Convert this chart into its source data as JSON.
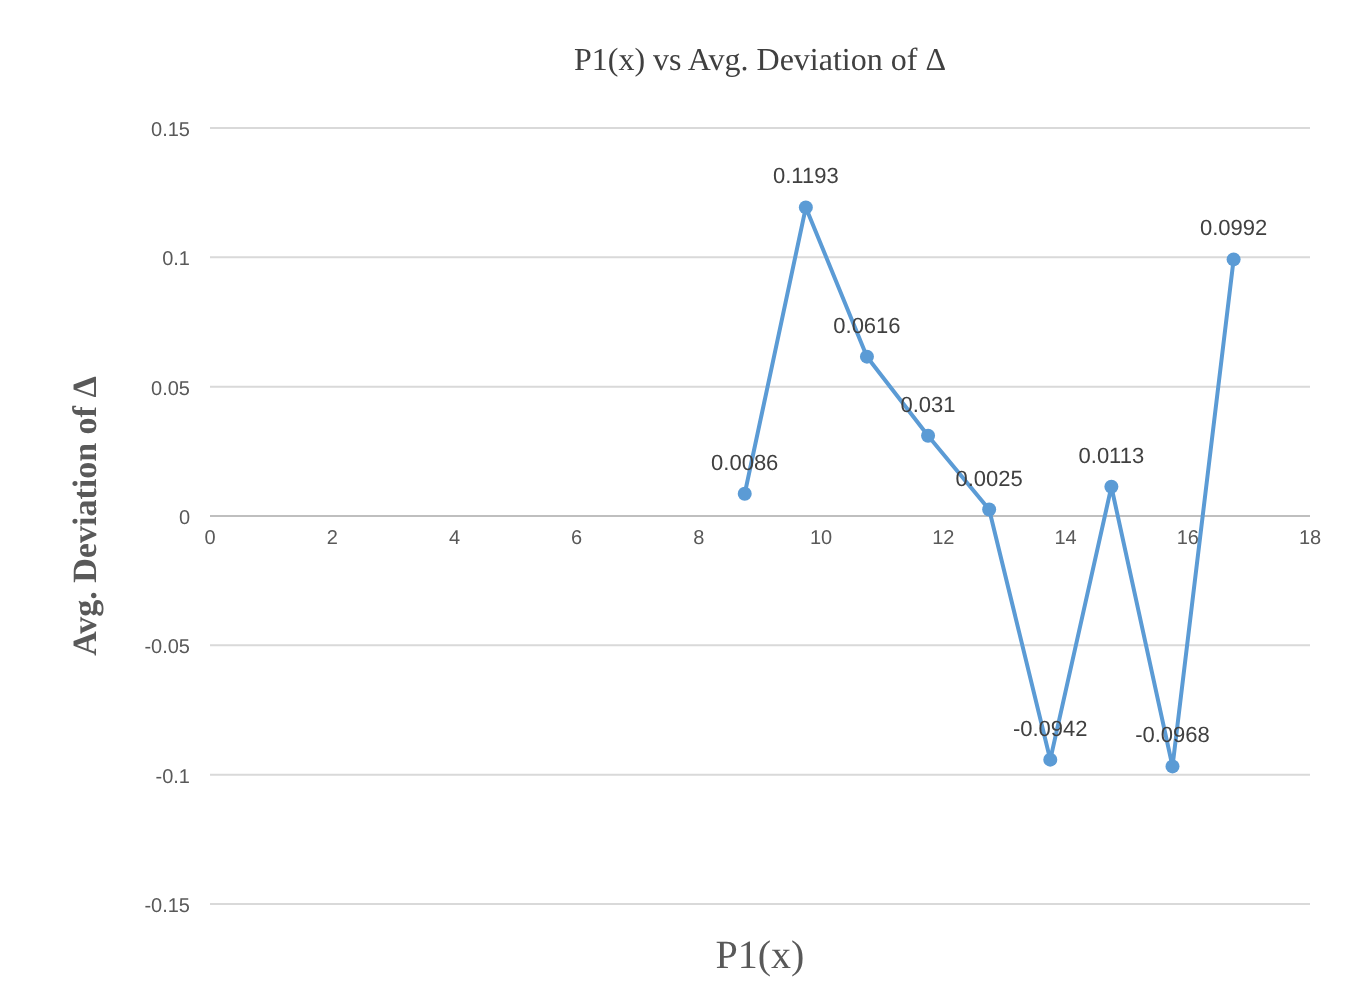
{
  "chart_data": {
    "type": "line",
    "title": "P1(x) vs Avg. Deviation of Δ",
    "xlabel": "P1(x)",
    "ylabel": "Avg. Deviation of Δ",
    "x": [
      8.75,
      9.75,
      10.75,
      11.75,
      12.75,
      13.75,
      14.75,
      15.75,
      16.75
    ],
    "series": [
      {
        "color": "#5b9bd5",
        "values": [
          0.0086,
          0.1193,
          0.0616,
          0.031,
          0.0025,
          -0.0942,
          0.0113,
          -0.0968,
          0.0992
        ]
      }
    ],
    "xlim": [
      0,
      18
    ],
    "xticks": [
      0,
      2,
      4,
      6,
      8,
      10,
      12,
      14,
      16,
      18
    ],
    "ylim": [
      -0.15,
      0.15
    ],
    "yticks": [
      -0.15,
      -0.1,
      -0.05,
      0,
      0.05,
      0.1,
      0.15
    ],
    "grid": "y",
    "marker": "circle",
    "line_style": "solid",
    "data_labels": true
  }
}
